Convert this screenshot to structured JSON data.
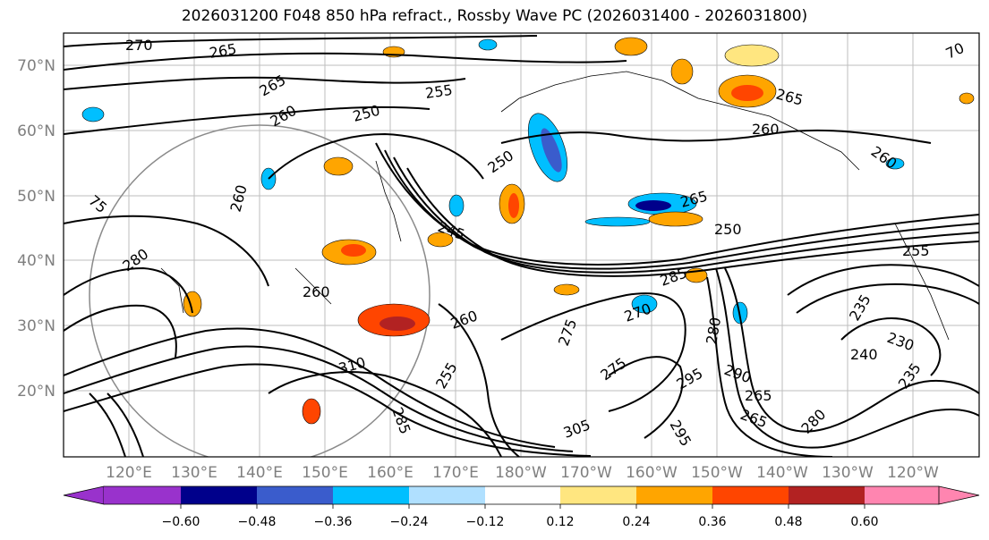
{
  "title": "2026031200 F048 850 hPa refract., Rossby Wave PC (2026031400 - 2026031800)",
  "map": {
    "lat_labels": [
      "70°N",
      "60°N",
      "50°N",
      "40°N",
      "30°N",
      "20°N"
    ],
    "lon_labels": [
      "120°E",
      "130°E",
      "140°E",
      "150°E",
      "160°E",
      "170°E",
      "180°W",
      "170°W",
      "160°W",
      "150°W",
      "140°W",
      "130°W",
      "120°W"
    ],
    "contour_labels": [
      "270",
      "265",
      "265",
      "260",
      "250",
      "255",
      "250",
      "265",
      "260",
      "260",
      "265",
      "250",
      "245",
      "280",
      "260",
      "260",
      "260",
      "275",
      "270",
      "285",
      "275",
      "280",
      "310",
      "255",
      "285",
      "295",
      "295",
      "290",
      "265",
      "265",
      "280",
      "305",
      "240",
      "230",
      "235",
      "235",
      "255",
      "70",
      "75"
    ]
  },
  "colorbar": {
    "tick_labels": [
      "−0.60",
      "−0.48",
      "−0.36",
      "−0.24",
      "−0.12",
      "0.12",
      "0.24",
      "0.36",
      "0.48",
      "0.60"
    ],
    "colors": [
      "#9932CC",
      "#00008B",
      "#3A5CCC",
      "#00BFFF",
      "#B0E0FF",
      "#FFFFFF",
      "#FFE680",
      "#FFA500",
      "#FF4500",
      "#B22222",
      "#FF85B0"
    ]
  }
}
